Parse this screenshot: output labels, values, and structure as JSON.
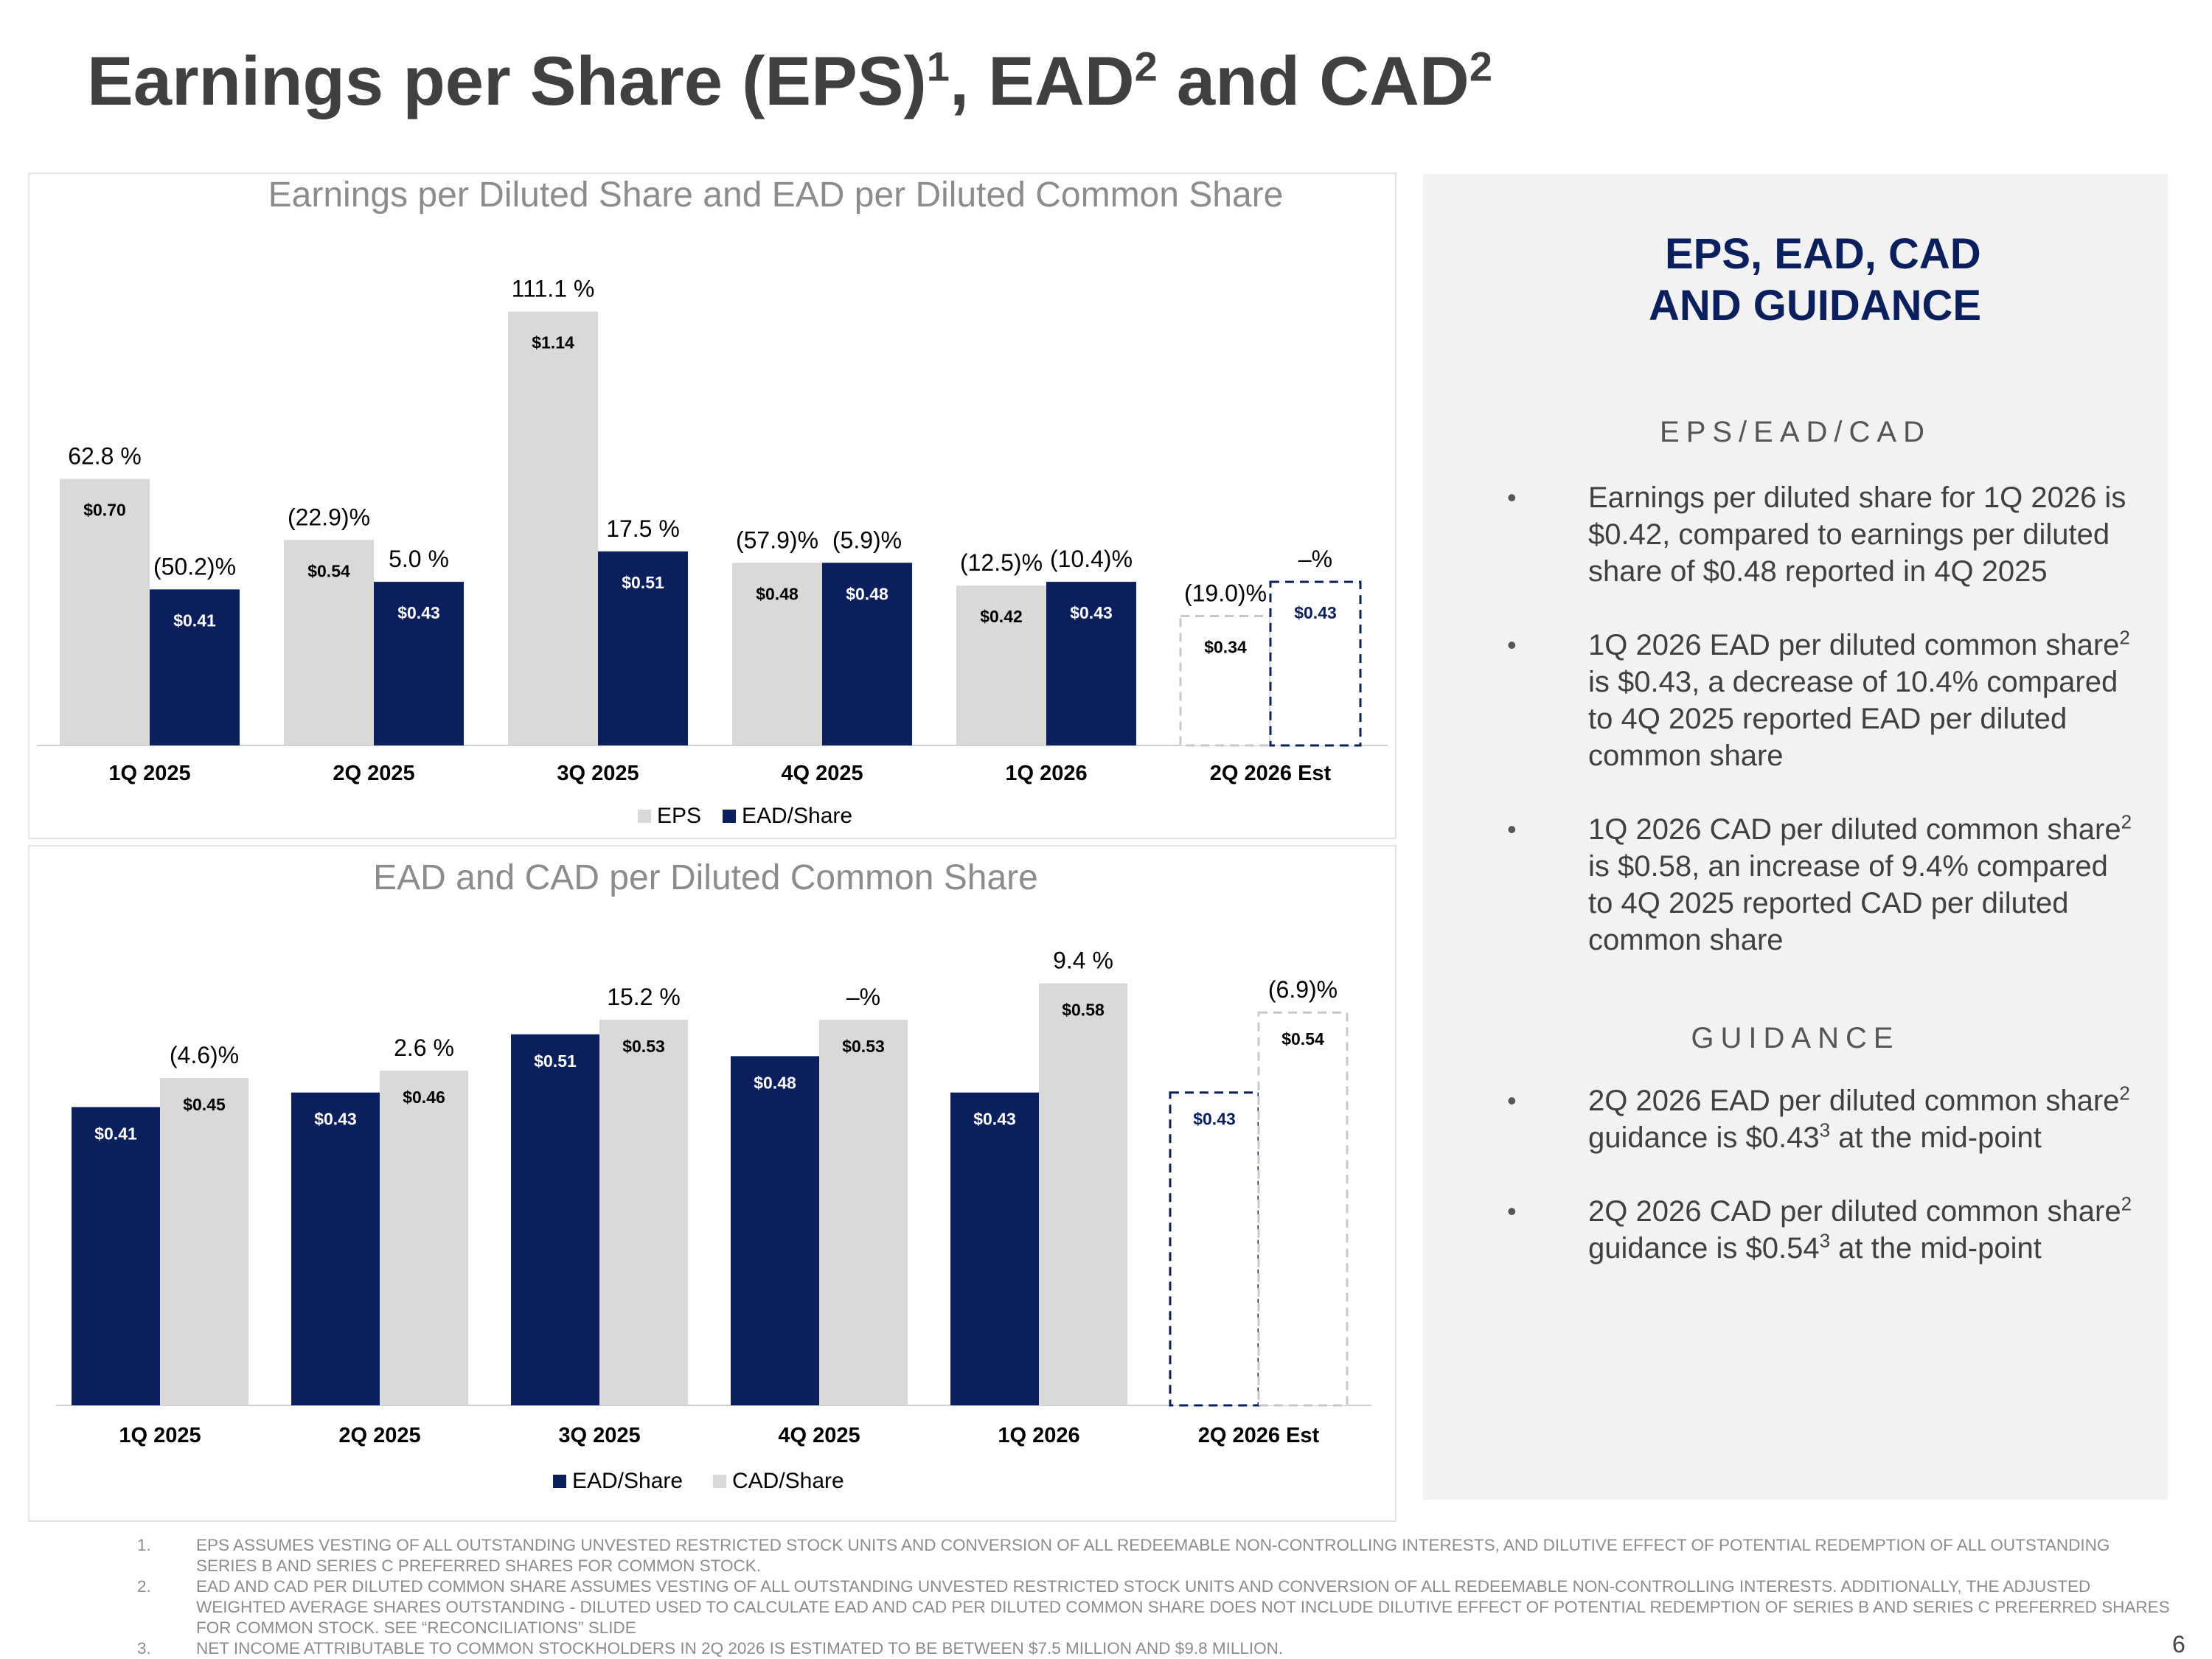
{
  "page": {
    "title_a": "Earnings per Share (EPS)",
    "title_sup1": "1",
    "title_b": ", EAD",
    "title_sup2": "2",
    "title_c": " and CAD",
    "title_sup3": "2",
    "page_number": "6"
  },
  "chart_data": [
    {
      "type": "bar",
      "title": "Earnings per Diluted Share and EAD per Diluted Common Share",
      "categories": [
        "1Q 2025",
        "2Q 2025",
        "3Q 2025",
        "4Q 2025",
        "1Q 2026",
        "2Q 2026 Est"
      ],
      "series": [
        {
          "name": "EPS",
          "color": "#d9d9d9",
          "text_color": "#000000",
          "values": [
            0.7,
            0.54,
            1.14,
            0.48,
            0.42,
            0.34
          ],
          "labels": [
            "$0.70",
            "$0.54",
            "$1.14",
            "$0.48",
            "$0.42",
            "$0.34"
          ],
          "changes": [
            "62.8 %",
            "(22.9)%",
            "111.1 %",
            "(57.9)%",
            "(12.5)%",
            "(19.0)%"
          ],
          "estimate_index": 5
        },
        {
          "name": "EAD/Share",
          "color": "#0b1f5c",
          "text_color": "#ffffff",
          "values": [
            0.41,
            0.43,
            0.51,
            0.48,
            0.43,
            0.43
          ],
          "labels": [
            "$0.41",
            "$0.43",
            "$0.51",
            "$0.48",
            "$0.43",
            "$0.43"
          ],
          "changes": [
            "(50.2)%",
            "5.0 %",
            "17.5 %",
            "(5.9)%",
            "(10.4)%",
            "–%"
          ],
          "estimate_index": 5
        }
      ],
      "ylim": [
        0,
        1.24
      ],
      "legend": "bottom-center",
      "grid": false
    },
    {
      "type": "bar",
      "title": "EAD and CAD per Diluted Common Share",
      "categories": [
        "1Q 2025",
        "2Q 2025",
        "3Q 2025",
        "4Q 2025",
        "1Q 2026",
        "2Q 2026 Est"
      ],
      "series": [
        {
          "name": "EAD/Share",
          "color": "#0b1f5c",
          "text_color": "#ffffff",
          "values": [
            0.41,
            0.43,
            0.51,
            0.48,
            0.43,
            0.43
          ],
          "labels": [
            "$0.41",
            "$0.43",
            "$0.51",
            "$0.48",
            "$0.43",
            "$0.43"
          ],
          "changes": [
            "",
            "",
            "",
            "",
            "",
            ""
          ],
          "estimate_index": 5
        },
        {
          "name": "CAD/Share",
          "color": "#d9d9d9",
          "text_color": "#000000",
          "values": [
            0.45,
            0.46,
            0.53,
            0.53,
            0.58,
            0.54
          ],
          "labels": [
            "$0.45",
            "$0.46",
            "$0.53",
            "$0.53",
            "$0.58",
            "$0.54"
          ],
          "changes": [
            "(4.6)%",
            "2.6 %",
            "15.2 %",
            "–%",
            "9.4 %",
            "(6.9)%"
          ],
          "estimate_index": 5
        }
      ],
      "ylim": [
        0,
        0.75
      ],
      "legend": "bottom-center",
      "grid": false
    }
  ],
  "panel": {
    "title_line1": "EPS, EAD, CAD",
    "title_line2": "AND GUIDANCE",
    "section1": "EPS/EAD/CAD",
    "section2": "GUIDANCE",
    "bullet": "•",
    "b1": "Earnings per diluted share for 1Q 2026 is $0.42, compared to earnings per diluted share of $0.48 reported in 4Q 2025",
    "b2_a": "1Q 2026 EAD per diluted common share",
    "b2_sup": "2",
    "b2_b": " is $0.43, a decrease of 10.4% compared to 4Q 2025 reported EAD per diluted common share",
    "b3_a": "1Q 2026 CAD per diluted common share",
    "b3_sup": "2",
    "b3_b": " is $0.58, an increase of 9.4% compared to 4Q 2025 reported CAD per diluted common share",
    "g1_a": "2Q 2026 EAD per diluted common share",
    "g1_sup": "2",
    "g1_b": " guidance is $0.43",
    "g1_sup2": "3",
    "g1_c": " at the mid-point",
    "g2_a": "2Q 2026 CAD per diluted common share",
    "g2_sup": "2",
    "g2_b": " guidance is $0.54",
    "g2_sup2": "3",
    "g2_c": " at the mid-point"
  },
  "footnotes": [
    {
      "num": "1.",
      "text": "EPS ASSUMES VESTING OF ALL OUTSTANDING UNVESTED RESTRICTED STOCK UNITS AND CONVERSION OF ALL REDEEMABLE NON-CONTROLLING INTERESTS, AND DILUTIVE EFFECT OF POTENTIAL REDEMPTION OF ALL OUTSTANDING SERIES B AND SERIES C PREFERRED SHARES FOR COMMON STOCK."
    },
    {
      "num": "2.",
      "text": "EAD AND CAD PER DILUTED COMMON SHARE ASSUMES VESTING OF ALL OUTSTANDING UNVESTED RESTRICTED STOCK UNITS AND CONVERSION OF ALL REDEEMABLE NON-CONTROLLING INTERESTS. ADDITIONALLY, THE ADJUSTED WEIGHTED AVERAGE SHARES OUTSTANDING - DILUTED USED TO CALCULATE EAD AND CAD PER DILUTED COMMON SHARE DOES NOT INCLUDE DILUTIVE EFFECT OF POTENTIAL REDEMPTION OF SERIES B AND SERIES C PREFERRED SHARES FOR COMMON STOCK. SEE “RECONCILIATIONS” SLIDE"
    },
    {
      "num": "3.",
      "text": "NET INCOME ATTRIBUTABLE TO COMMON STOCKHOLDERS IN 2Q 2026 IS ESTIMATED TO BE BETWEEN $7.5 MILLION AND $9.8 MILLION."
    }
  ]
}
